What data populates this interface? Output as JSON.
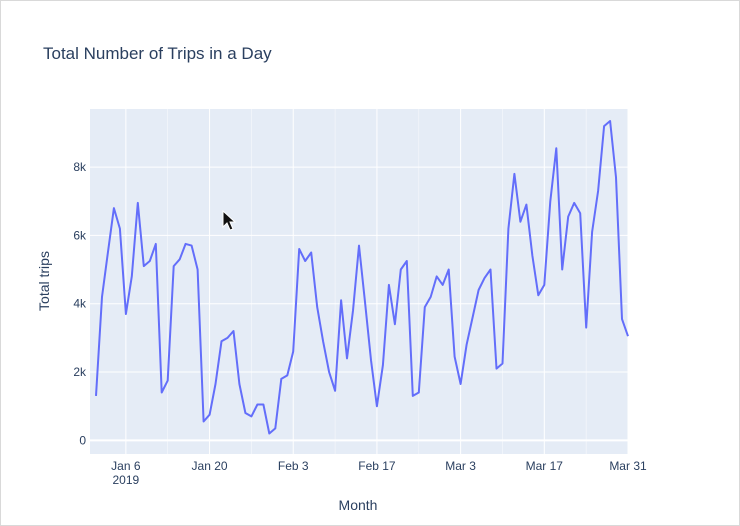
{
  "chart_data": {
    "type": "line",
    "title": "Total Number of Trips in a Day",
    "xlabel": "Month",
    "ylabel": "Total trips",
    "x_range": [
      "2018-12-31",
      "2019-03-31"
    ],
    "ylim": [
      -400,
      9700
    ],
    "grid": true,
    "legend": "none",
    "x_ticks": [
      {
        "date": "2019-01-06",
        "label": "Jan 6",
        "sublabel": "2019"
      },
      {
        "date": "2019-01-20",
        "label": "Jan 20",
        "sublabel": ""
      },
      {
        "date": "2019-02-03",
        "label": "Feb 3",
        "sublabel": ""
      },
      {
        "date": "2019-02-17",
        "label": "Feb 17",
        "sublabel": ""
      },
      {
        "date": "2019-03-03",
        "label": "Mar 3",
        "sublabel": ""
      },
      {
        "date": "2019-03-17",
        "label": "Mar 17",
        "sublabel": ""
      },
      {
        "date": "2019-03-31",
        "label": "Mar 31",
        "sublabel": ""
      }
    ],
    "y_ticks": [
      {
        "value": 0,
        "label": "0"
      },
      {
        "value": 2000,
        "label": "2k"
      },
      {
        "value": 4000,
        "label": "4k"
      },
      {
        "value": 6000,
        "label": "6k"
      },
      {
        "value": 8000,
        "label": "8k"
      }
    ],
    "series": [
      {
        "color": "#636efa",
        "points": [
          [
            "2019-01-01",
            1300
          ],
          [
            "2019-01-02",
            4200
          ],
          [
            "2019-01-03",
            5500
          ],
          [
            "2019-01-04",
            6800
          ],
          [
            "2019-01-05",
            6200
          ],
          [
            "2019-01-06",
            3700
          ],
          [
            "2019-01-07",
            4800
          ],
          [
            "2019-01-08",
            6950
          ],
          [
            "2019-01-09",
            5100
          ],
          [
            "2019-01-10",
            5250
          ],
          [
            "2019-01-11",
            5750
          ],
          [
            "2019-01-12",
            1400
          ],
          [
            "2019-01-13",
            1750
          ],
          [
            "2019-01-14",
            5100
          ],
          [
            "2019-01-15",
            5300
          ],
          [
            "2019-01-16",
            5750
          ],
          [
            "2019-01-17",
            5700
          ],
          [
            "2019-01-18",
            5000
          ],
          [
            "2019-01-19",
            550
          ],
          [
            "2019-01-20",
            750
          ],
          [
            "2019-01-21",
            1650
          ],
          [
            "2019-01-22",
            2900
          ],
          [
            "2019-01-23",
            3000
          ],
          [
            "2019-01-24",
            3200
          ],
          [
            "2019-01-25",
            1650
          ],
          [
            "2019-01-26",
            800
          ],
          [
            "2019-01-27",
            700
          ],
          [
            "2019-01-28",
            1050
          ],
          [
            "2019-01-29",
            1050
          ],
          [
            "2019-01-30",
            200
          ],
          [
            "2019-01-31",
            350
          ],
          [
            "2019-02-01",
            1800
          ],
          [
            "2019-02-02",
            1900
          ],
          [
            "2019-02-03",
            2600
          ],
          [
            "2019-02-04",
            5600
          ],
          [
            "2019-02-05",
            5250
          ],
          [
            "2019-02-06",
            5500
          ],
          [
            "2019-02-07",
            3900
          ],
          [
            "2019-02-08",
            2900
          ],
          [
            "2019-02-09",
            2000
          ],
          [
            "2019-02-10",
            1450
          ],
          [
            "2019-02-11",
            4100
          ],
          [
            "2019-02-12",
            2400
          ],
          [
            "2019-02-13",
            3800
          ],
          [
            "2019-02-14",
            5700
          ],
          [
            "2019-02-15",
            4050
          ],
          [
            "2019-02-16",
            2350
          ],
          [
            "2019-02-17",
            1000
          ],
          [
            "2019-02-18",
            2200
          ],
          [
            "2019-02-19",
            4550
          ],
          [
            "2019-02-20",
            3400
          ],
          [
            "2019-02-21",
            5000
          ],
          [
            "2019-02-22",
            5250
          ],
          [
            "2019-02-23",
            1300
          ],
          [
            "2019-02-24",
            1400
          ],
          [
            "2019-02-25",
            3900
          ],
          [
            "2019-02-26",
            4200
          ],
          [
            "2019-02-27",
            4800
          ],
          [
            "2019-02-28",
            4550
          ],
          [
            "2019-03-01",
            5000
          ],
          [
            "2019-03-02",
            2450
          ],
          [
            "2019-03-03",
            1650
          ],
          [
            "2019-03-04",
            2800
          ],
          [
            "2019-03-05",
            3600
          ],
          [
            "2019-03-06",
            4400
          ],
          [
            "2019-03-07",
            4750
          ],
          [
            "2019-03-08",
            5000
          ],
          [
            "2019-03-09",
            2100
          ],
          [
            "2019-03-10",
            2250
          ],
          [
            "2019-03-11",
            6200
          ],
          [
            "2019-03-12",
            7800
          ],
          [
            "2019-03-13",
            6400
          ],
          [
            "2019-03-14",
            6900
          ],
          [
            "2019-03-15",
            5400
          ],
          [
            "2019-03-16",
            4250
          ],
          [
            "2019-03-17",
            4550
          ],
          [
            "2019-03-18",
            7000
          ],
          [
            "2019-03-19",
            8550
          ],
          [
            "2019-03-20",
            5000
          ],
          [
            "2019-03-21",
            6550
          ],
          [
            "2019-03-22",
            6950
          ],
          [
            "2019-03-23",
            6650
          ],
          [
            "2019-03-24",
            3300
          ],
          [
            "2019-03-25",
            6100
          ],
          [
            "2019-03-26",
            7300
          ],
          [
            "2019-03-27",
            9200
          ],
          [
            "2019-03-28",
            9350
          ],
          [
            "2019-03-29",
            7700
          ],
          [
            "2019-03-30",
            3550
          ],
          [
            "2019-03-31",
            3050
          ]
        ]
      }
    ]
  }
}
